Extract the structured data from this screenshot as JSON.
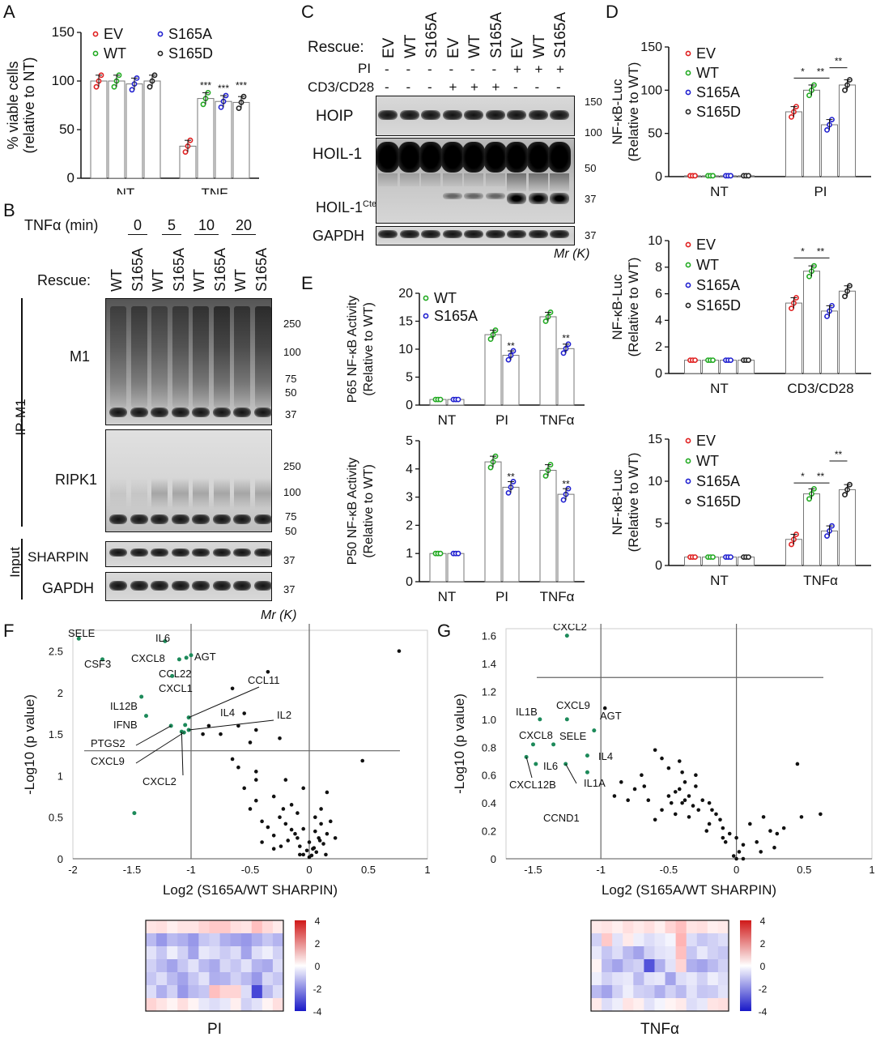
{
  "panel_labels": {
    "a": "A",
    "b": "B",
    "c": "C",
    "d": "D",
    "e": "E",
    "f": "F",
    "g": "G"
  },
  "colors": {
    "EV": "#e02020",
    "WT": "#22aa22",
    "S165A": "#2020d0",
    "S165D": "#222222",
    "green_gene": "#1d8a5a",
    "heat_pos": "#d01818",
    "heat_neg": "#1818c8"
  },
  "panelA": {
    "chart_data": {
      "type": "bar",
      "title": "",
      "ylabel": "% viable cells (relative to NT)",
      "ylim": [
        0,
        150
      ],
      "yticks": [
        "0",
        "50",
        "100",
        "150"
      ],
      "categories": [
        "NT",
        "TNF"
      ],
      "series": [
        {
          "name": "EV",
          "values": [
            100,
            33
          ]
        },
        {
          "name": "WT",
          "values": [
            100,
            82
          ]
        },
        {
          "name": "S165A",
          "values": [
            97,
            79
          ]
        },
        {
          "name": "S165D",
          "values": [
            100,
            78
          ]
        }
      ],
      "significance": [
        "***",
        "***",
        "***"
      ]
    }
  },
  "panelB": {
    "treatment_label": "TNFα (min)",
    "timepoints": [
      "0",
      "5",
      "10",
      "20"
    ],
    "rescue_label": "Rescue:",
    "lanes": [
      "WT",
      "S165A",
      "WT",
      "S165A",
      "WT",
      "S165A",
      "WT",
      "S165A"
    ],
    "ip_label": "IP-M1",
    "input_label": "Input",
    "blots": [
      "M1",
      "RIPK1",
      "SHARPIN",
      "GAPDH"
    ],
    "markers_m1": [
      "250",
      "100",
      "75",
      "50",
      "37"
    ],
    "markers_ripk1": [
      "250",
      "100",
      "75",
      "50"
    ],
    "marker_sharpin": "37",
    "marker_gapdh": "37",
    "mr_label": "Mr (K)"
  },
  "panelC": {
    "rescue_label": "Rescue:",
    "lanes": [
      "EV",
      "WT",
      "S165A",
      "EV",
      "WT",
      "S165A",
      "EV",
      "WT",
      "S165A"
    ],
    "pi_label": "PI",
    "pi_signs": [
      "-",
      "-",
      "-",
      "-",
      "-",
      "-",
      "+",
      "+",
      "+"
    ],
    "cd_label": "CD3/CD28",
    "cd_signs": [
      "-",
      "-",
      "-",
      "+",
      "+",
      "+",
      "-",
      "-",
      "-"
    ],
    "blots": [
      "HOIP",
      "HOIL-1",
      "HOIL-1",
      "GAPDH"
    ],
    "cter_sup": "Cter",
    "markers": [
      "150",
      "100",
      "50",
      "37",
      "37"
    ],
    "mr_label": "Mr (K)"
  },
  "panelD1": {
    "chart_data": {
      "type": "bar",
      "ylabel": "NF-κB-Luc (Relative to WT)",
      "ylim": [
        0,
        150
      ],
      "yticks": [
        "0",
        "50",
        "100",
        "150"
      ],
      "categories": [
        "NT",
        "PI"
      ],
      "series": [
        {
          "name": "EV",
          "values": [
            1,
            75
          ]
        },
        {
          "name": "WT",
          "values": [
            1,
            100
          ]
        },
        {
          "name": "S165A",
          "values": [
            1,
            60
          ]
        },
        {
          "name": "S165D",
          "values": [
            1,
            106
          ]
        }
      ],
      "significance": [
        "*",
        "**",
        "**"
      ]
    }
  },
  "panelD2": {
    "chart_data": {
      "type": "bar",
      "ylabel": "NF-κB-Luc (Relative to WT)",
      "ylim": [
        0,
        10
      ],
      "yticks": [
        "0",
        "2",
        "4",
        "6",
        "8",
        "10"
      ],
      "categories": [
        "NT",
        "CD3/CD28"
      ],
      "series": [
        {
          "name": "EV",
          "values": [
            1,
            5.3
          ]
        },
        {
          "name": "WT",
          "values": [
            1,
            7.7
          ]
        },
        {
          "name": "S165A",
          "values": [
            1,
            4.7
          ]
        },
        {
          "name": "S165D",
          "values": [
            1,
            6.2
          ]
        }
      ],
      "significance": [
        "*",
        "**"
      ]
    }
  },
  "panelD3": {
    "chart_data": {
      "type": "bar",
      "ylabel": "NF-κB-Luc (Relative to WT)",
      "ylim": [
        0,
        15
      ],
      "yticks": [
        "0",
        "5",
        "10",
        "15"
      ],
      "categories": [
        "NT",
        "TNFα"
      ],
      "series": [
        {
          "name": "EV",
          "values": [
            1,
            3.1
          ]
        },
        {
          "name": "WT",
          "values": [
            1,
            8.5
          ]
        },
        {
          "name": "S165A",
          "values": [
            1,
            4.1
          ]
        },
        {
          "name": "S165D",
          "values": [
            1,
            9
          ]
        }
      ],
      "significance": [
        "*",
        "**",
        "**"
      ]
    }
  },
  "panelE1": {
    "chart_data": {
      "type": "bar",
      "ylabel": "P65 NF-κB Activity (Relative to WT)",
      "ylim": [
        0,
        20
      ],
      "yticks": [
        "0",
        "5",
        "10",
        "15",
        "20"
      ],
      "categories": [
        "NT",
        "PI",
        "TNFα"
      ],
      "series": [
        {
          "name": "WT",
          "values": [
            1,
            12.6,
            15.8
          ]
        },
        {
          "name": "S165A",
          "values": [
            1,
            8.9,
            10.1
          ]
        }
      ],
      "significance": [
        "**",
        "**"
      ]
    }
  },
  "panelE2": {
    "chart_data": {
      "type": "bar",
      "ylabel": "P50 NF-κB Activity (Relative to WT)",
      "ylim": [
        0,
        5
      ],
      "yticks": [
        "0",
        "1",
        "2",
        "3",
        "4",
        "5"
      ],
      "categories": [
        "NT",
        "PI",
        "TNFα"
      ],
      "series": [
        {
          "name": "WT",
          "values": [
            1,
            4.25,
            3.95
          ]
        },
        {
          "name": "S165A",
          "values": [
            1,
            3.35,
            3.1
          ]
        }
      ],
      "significance": [
        "**",
        "**"
      ]
    }
  },
  "panelF": {
    "chart_data": {
      "type": "scatter",
      "xlabel": "Log2 (S165A/WT SHARPIN)",
      "ylabel": "-Log10 (p value)",
      "xlim": [
        -2,
        1
      ],
      "ylim": [
        0,
        2.75
      ],
      "xticks": [
        "-2",
        "-1.5",
        "-1",
        "-0.5",
        "0",
        "0.5",
        "1"
      ],
      "yticks": [
        "0",
        "0.5",
        "1",
        "1.5",
        "2",
        "2.5"
      ],
      "threshold_x": -1,
      "threshold_y": 1.3,
      "labeled": [
        {
          "label": "SELE",
          "x": -1.95,
          "y": 2.65
        },
        {
          "label": "IL6",
          "x": -1.22,
          "y": 2.62
        },
        {
          "label": "CXCL8",
          "x": -1.04,
          "y": 2.42
        },
        {
          "label": "AGT",
          "x": -1.0,
          "y": 2.45
        },
        {
          "label": "CCL22",
          "x": -1.1,
          "y": 2.4
        },
        {
          "label": "CSF3",
          "x": -1.75,
          "y": 2.4
        },
        {
          "label": "CXCL1",
          "x": -1.16,
          "y": 2.2
        },
        {
          "label": "IL12B",
          "x": -1.42,
          "y": 1.95
        },
        {
          "label": "IFNB",
          "x": -1.38,
          "y": 1.72
        },
        {
          "label": "CCL11",
          "x": -1.02,
          "y": 1.7
        },
        {
          "label": "IL4",
          "x": -1.05,
          "y": 1.61
        },
        {
          "label": "IL2",
          "x": -1.02,
          "y": 1.55
        },
        {
          "label": "PTGS2",
          "x": -1.17,
          "y": 1.6
        },
        {
          "label": "CXCL9",
          "x": -1.06,
          "y": 1.52
        },
        {
          "label": "CXCL2",
          "x": -1.08,
          "y": 1.53
        },
        {
          "label": "",
          "x": -1.48,
          "y": 0.55
        }
      ],
      "points": [
        [
          0.76,
          2.5
        ],
        [
          -0.35,
          2.25
        ],
        [
          -0.65,
          2.05
        ],
        [
          -0.55,
          1.75
        ],
        [
          -0.6,
          1.6
        ],
        [
          -0.85,
          1.6
        ],
        [
          -0.75,
          1.5
        ],
        [
          -0.45,
          1.55
        ],
        [
          -0.25,
          1.45
        ],
        [
          -0.5,
          1.4
        ],
        [
          -0.65,
          1.2
        ],
        [
          -0.9,
          1.5
        ],
        [
          -0.6,
          1.1
        ],
        [
          -0.45,
          0.95
        ],
        [
          -0.2,
          0.95
        ],
        [
          -0.05,
          0.85
        ],
        [
          -0.3,
          0.75
        ],
        [
          0.15,
          0.8
        ],
        [
          0.45,
          1.18
        ],
        [
          -0.45,
          0.7
        ],
        [
          -0.15,
          0.65
        ],
        [
          0.1,
          0.6
        ],
        [
          -0.1,
          0.55
        ],
        [
          -0.25,
          0.5
        ],
        [
          0.05,
          0.5
        ],
        [
          -0.4,
          0.45
        ],
        [
          -0.2,
          0.42
        ],
        [
          0.1,
          0.42
        ],
        [
          -0.35,
          0.38
        ],
        [
          -0.05,
          0.36
        ],
        [
          0.05,
          0.33
        ],
        [
          -0.12,
          0.3
        ],
        [
          0.15,
          0.3
        ],
        [
          -0.3,
          0.28
        ],
        [
          0.08,
          0.25
        ],
        [
          -0.18,
          0.22
        ],
        [
          0.0,
          0.2
        ],
        [
          0.12,
          0.18
        ],
        [
          -0.08,
          0.15
        ],
        [
          0.04,
          0.13
        ],
        [
          -0.02,
          0.1
        ],
        [
          0.06,
          0.08
        ],
        [
          -0.05,
          0.05
        ],
        [
          0.02,
          0.04
        ],
        [
          0.0,
          0.02
        ],
        [
          0.03,
          0.12
        ],
        [
          -0.15,
          0.35
        ],
        [
          -0.22,
          0.6
        ],
        [
          0.18,
          0.45
        ],
        [
          -0.5,
          0.6
        ],
        [
          -0.4,
          0.2
        ],
        [
          -0.1,
          0.25
        ],
        [
          0.09,
          0.22
        ],
        [
          -0.3,
          0.12
        ],
        [
          -0.08,
          0.05
        ],
        [
          0.14,
          0.05
        ],
        [
          -0.24,
          0.15
        ],
        [
          0.22,
          0.25
        ],
        [
          -0.45,
          1.05
        ],
        [
          -0.55,
          0.85
        ]
      ]
    },
    "heatmap_label": "PI",
    "heatmap": [
      [
        0.5,
        0.6,
        0.3,
        0.5,
        0.5,
        0.8,
        1.0,
        1.0,
        0.6,
        0.5,
        1.2,
        0.7,
        0.4
      ],
      [
        -1.2,
        -1.8,
        -1.2,
        -1.4,
        -1.8,
        -1.0,
        -0.8,
        -1.4,
        -1.6,
        -1.8,
        -1.4,
        -1.0,
        -1.3
      ],
      [
        -0.5,
        -1.0,
        -0.3,
        -0.8,
        -1.6,
        -0.4,
        -0.6,
        -0.9,
        -0.6,
        -1.6,
        -0.6,
        -0.3,
        -0.8
      ],
      [
        -0.8,
        -1.2,
        -1.6,
        -1.0,
        -0.5,
        -1.2,
        -1.5,
        -0.7,
        -1.0,
        -0.5,
        -1.3,
        -1.5,
        -0.6
      ],
      [
        -1.0,
        -0.6,
        -1.2,
        -1.6,
        -1.0,
        -0.5,
        -1.4,
        -1.3,
        -0.8,
        -1.2,
        -1.8,
        -0.7,
        -1.0
      ],
      [
        -0.6,
        -1.4,
        -0.8,
        -1.8,
        -1.2,
        -1.0,
        1.2,
        0.8,
        0.8,
        -0.6,
        -3.2,
        -1.2,
        -0.6
      ],
      [
        0.8,
        0.5,
        0.2,
        0.6,
        0.2,
        -0.4,
        -0.6,
        -0.4,
        0.3,
        -0.8,
        -0.5,
        0.2,
        0.6
      ]
    ],
    "scale_ticks": [
      "4",
      "2",
      "0",
      "-2",
      "-4"
    ]
  },
  "panelG": {
    "chart_data": {
      "type": "scatter",
      "xlabel": "Log2 (S165A/WT SHARPIN)",
      "ylabel": "-Log10 (p value)",
      "xlim": [
        -1.7,
        1.0
      ],
      "ylim": [
        0,
        1.65
      ],
      "xticks": [
        "-1.5",
        "-1",
        "-0.5",
        "0",
        "0.5",
        "1"
      ],
      "yticks": [
        "0",
        "0.2",
        "0.4",
        "0.6",
        "0.8",
        "1.0",
        "1.2",
        "1.4",
        "1.6"
      ],
      "threshold_x": -1,
      "threshold_y": 1.3,
      "labeled": [
        {
          "label": "CXCL2",
          "x": -1.25,
          "y": 1.6
        },
        {
          "label": "IL1B",
          "x": -1.45,
          "y": 1.0
        },
        {
          "label": "CXCL9",
          "x": -1.25,
          "y": 1.0
        },
        {
          "label": "AGT",
          "x": -1.05,
          "y": 0.92
        },
        {
          "label": "CXCL8",
          "x": -1.5,
          "y": 0.82
        },
        {
          "label": "SELE",
          "x": -1.35,
          "y": 0.82
        },
        {
          "label": "IL6",
          "x": -1.48,
          "y": 0.68
        },
        {
          "label": "CXCL12B",
          "x": -1.55,
          "y": 0.73
        },
        {
          "label": "IL4",
          "x": -1.1,
          "y": 0.74
        },
        {
          "label": "IL1A",
          "x": -1.1,
          "y": 0.62
        },
        {
          "label": "CCND1",
          "x": -1.26,
          "y": 0.68
        }
      ],
      "points": [
        [
          -0.97,
          1.08
        ],
        [
          -0.6,
          0.78
        ],
        [
          -0.55,
          0.72
        ],
        [
          -0.7,
          0.6
        ],
        [
          -0.85,
          0.55
        ],
        [
          -0.5,
          0.65
        ],
        [
          -0.42,
          0.7
        ],
        [
          -0.38,
          0.55
        ],
        [
          -0.3,
          0.52
        ],
        [
          -0.35,
          0.45
        ],
        [
          -0.4,
          0.4
        ],
        [
          -0.45,
          0.48
        ],
        [
          -0.25,
          0.42
        ],
        [
          -0.28,
          0.35
        ],
        [
          -0.2,
          0.4
        ],
        [
          -0.15,
          0.32
        ],
        [
          -0.12,
          0.28
        ],
        [
          -0.2,
          0.25
        ],
        [
          -0.1,
          0.22
        ],
        [
          -0.05,
          0.18
        ],
        [
          0.0,
          0.15
        ],
        [
          -0.08,
          0.12
        ],
        [
          0.05,
          0.1
        ],
        [
          0.02,
          0.05
        ],
        [
          -0.02,
          0.02
        ],
        [
          0.1,
          0.25
        ],
        [
          0.2,
          0.3
        ],
        [
          0.3,
          0.18
        ],
        [
          0.45,
          0.68
        ],
        [
          0.48,
          0.3
        ],
        [
          0.62,
          0.32
        ],
        [
          0.35,
          0.22
        ],
        [
          0.15,
          0.12
        ],
        [
          0.25,
          0.2
        ],
        [
          -0.55,
          0.35
        ],
        [
          -0.65,
          0.42
        ],
        [
          -0.75,
          0.5
        ],
        [
          -0.6,
          0.28
        ],
        [
          -0.45,
          0.32
        ],
        [
          -0.35,
          0.3
        ],
        [
          -0.3,
          0.6
        ],
        [
          -0.5,
          0.45
        ],
        [
          -0.4,
          0.62
        ],
        [
          -0.32,
          0.38
        ],
        [
          -0.22,
          0.2
        ],
        [
          -0.18,
          0.35
        ],
        [
          -0.1,
          0.15
        ],
        [
          0.0,
          0.0
        ],
        [
          0.05,
          0.0
        ],
        [
          -0.9,
          0.45
        ],
        [
          -0.8,
          0.42
        ],
        [
          -0.68,
          0.52
        ],
        [
          -0.48,
          0.4
        ],
        [
          -0.38,
          0.42
        ],
        [
          -0.42,
          0.5
        ],
        [
          0.18,
          0.05
        ],
        [
          0.28,
          0.08
        ]
      ]
    },
    "heatmap_label": "TNFα",
    "heatmap": [
      [
        0.4,
        0.5,
        0.3,
        0.6,
        0.4,
        0.6,
        0.3,
        0.8,
        1.2,
        0.5,
        0.6,
        0.3,
        0.4
      ],
      [
        -0.8,
        1.0,
        -0.5,
        0.4,
        -0.3,
        -0.6,
        -0.4,
        -0.2,
        1.4,
        -0.6,
        -1.0,
        -0.8,
        -0.6
      ],
      [
        -0.4,
        -1.0,
        -0.6,
        -1.2,
        -1.6,
        -0.8,
        -0.5,
        -0.4,
        1.2,
        -1.0,
        -0.4,
        -0.8,
        -1.0
      ],
      [
        0.2,
        -1.2,
        -1.6,
        -1.0,
        -0.8,
        -3.0,
        -1.4,
        -0.5,
        0.8,
        -1.4,
        -1.6,
        -1.2,
        -0.8
      ],
      [
        -0.3,
        -0.8,
        -0.5,
        -0.4,
        -1.2,
        -0.5,
        -0.4,
        -1.6,
        -0.6,
        -0.4,
        -0.8,
        -0.3,
        -0.6
      ],
      [
        -1.2,
        -1.6,
        -0.8,
        -0.3,
        -0.8,
        -0.9,
        -1.4,
        -0.8,
        -1.2,
        -0.5,
        -1.0,
        -0.9,
        -0.5
      ],
      [
        0.4,
        -0.6,
        -0.3,
        0.5,
        0.3,
        -0.5,
        -0.2,
        0.2,
        0.4,
        -0.6,
        -0.4,
        0.5,
        0.6
      ]
    ],
    "scale_ticks": [
      "4",
      "2",
      "0",
      "-2",
      "-4"
    ]
  }
}
